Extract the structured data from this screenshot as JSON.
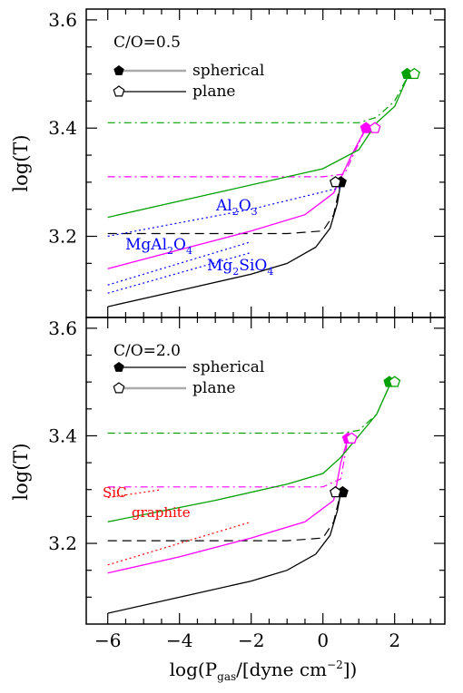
{
  "figure": {
    "xlabel": "log(P",
    "xlabel_sub": "gas",
    "xlabel_tail": "/[dyne cm",
    "xlabel_sup": "−2",
    "xlabel_end": "])",
    "x_ticks": [
      "−6",
      "−4",
      "−2",
      "0",
      "2"
    ],
    "colors": {
      "black": "#000000",
      "magenta": "#ff00ff",
      "green": "#00a000",
      "blue": "#0000ff",
      "red": "#ff0000",
      "grey": "#aaaaaa"
    }
  },
  "chart_data": [
    {
      "type": "line",
      "panel": "top",
      "ylabel": "log(T)",
      "xlim": [
        -6.6,
        3.4
      ],
      "ylim": [
        3.05,
        3.62
      ],
      "y_ticks": [
        "3.2",
        "3.4",
        "3.6"
      ],
      "annotation": "C/O=0.5",
      "legend": [
        {
          "marker": "filled-pentagon",
          "label": "spherical",
          "line": "grey-thick"
        },
        {
          "marker": "open-pentagon",
          "label": "plane",
          "line": "black-thin"
        }
      ],
      "mineral_labels": [
        {
          "text": "Al",
          "sub": "2",
          "text2": "O",
          "sub2": "3",
          "text3": ""
        },
        {
          "text": "MgAl",
          "sub": "2",
          "text2": "O",
          "sub2": "4",
          "text3": ""
        },
        {
          "text": "Mg",
          "sub": "2",
          "text2": "SiO",
          "sub2": "4",
          "text3": ""
        }
      ],
      "series": [
        {
          "color": "black",
          "style": "solid",
          "points": [
            [
              -6,
              3.07
            ],
            [
              -4,
              3.1
            ],
            [
              -2,
              3.13
            ],
            [
              -1,
              3.15
            ],
            [
              -0.2,
              3.18
            ],
            [
              0.2,
              3.215
            ],
            [
              0.4,
              3.26
            ],
            [
              0.5,
              3.3
            ]
          ]
        },
        {
          "color": "black",
          "style": "dashed",
          "points": [
            [
              -6,
              3.205
            ],
            [
              -1,
              3.205
            ],
            [
              0,
              3.21
            ],
            [
              0.3,
              3.24
            ],
            [
              0.5,
              3.3
            ]
          ]
        },
        {
          "color": "magenta",
          "style": "solid",
          "points": [
            [
              -6,
              3.14
            ],
            [
              -4,
              3.175
            ],
            [
              -2,
              3.21
            ],
            [
              -0.5,
              3.24
            ],
            [
              0.3,
              3.28
            ],
            [
              0.8,
              3.35
            ],
            [
              1.2,
              3.4
            ]
          ]
        },
        {
          "color": "magenta",
          "style": "dashdot",
          "points": [
            [
              -6,
              3.31
            ],
            [
              0,
              3.31
            ],
            [
              0.6,
              3.315
            ],
            [
              1.2,
              3.4
            ]
          ]
        },
        {
          "color": "green",
          "style": "solid",
          "points": [
            [
              -6,
              3.235
            ],
            [
              -3,
              3.28
            ],
            [
              0,
              3.325
            ],
            [
              1,
              3.36
            ],
            [
              1.5,
              3.41
            ],
            [
              2,
              3.44
            ],
            [
              2.4,
              3.5
            ]
          ]
        },
        {
          "color": "green",
          "style": "dashdot",
          "points": [
            [
              -6,
              3.41
            ],
            [
              1,
              3.41
            ],
            [
              1.5,
              3.42
            ],
            [
              2,
              3.45
            ],
            [
              2.4,
              3.5
            ]
          ]
        },
        {
          "color": "blue",
          "style": "dotted",
          "points": [
            [
              -6,
              3.2
            ],
            [
              -2,
              3.25
            ],
            [
              0.5,
              3.29
            ]
          ]
        },
        {
          "color": "blue",
          "style": "dotted",
          "points": [
            [
              -6,
              3.11
            ],
            [
              -2,
              3.19
            ]
          ]
        },
        {
          "color": "blue",
          "style": "dotted",
          "points": [
            [
              -6,
              3.095
            ],
            [
              -2,
              3.17
            ]
          ]
        }
      ],
      "markers": [
        {
          "type": "filled-pentagon",
          "color": "black",
          "point": [
            0.5,
            3.3
          ]
        },
        {
          "type": "open-pentagon",
          "color": "black",
          "point": [
            0.35,
            3.3
          ]
        },
        {
          "type": "filled-pentagon",
          "color": "magenta",
          "point": [
            1.2,
            3.4
          ]
        },
        {
          "type": "open-pentagon",
          "color": "magenta",
          "point": [
            1.45,
            3.4
          ]
        },
        {
          "type": "filled-pentagon",
          "color": "green",
          "point": [
            2.35,
            3.5
          ]
        },
        {
          "type": "open-pentagon",
          "color": "green",
          "point": [
            2.55,
            3.5
          ]
        }
      ]
    },
    {
      "type": "line",
      "panel": "bottom",
      "ylabel": "log(T)",
      "xlim": [
        -6.6,
        3.4
      ],
      "ylim": [
        3.05,
        3.62
      ],
      "y_ticks": [
        "3.2",
        "3.4",
        "3.6"
      ],
      "annotation": "C/O=2.0",
      "legend": [
        {
          "marker": "filled-pentagon",
          "label": "spherical",
          "line": "black-thin"
        },
        {
          "marker": "open-pentagon",
          "label": "plane",
          "line": "grey-thick"
        }
      ],
      "mineral_labels": [
        {
          "text": "SiC"
        },
        {
          "text": "graphite"
        }
      ],
      "series": [
        {
          "color": "black",
          "style": "solid",
          "points": [
            [
              -6,
              3.07
            ],
            [
              -4,
              3.1
            ],
            [
              -2,
              3.13
            ],
            [
              -1,
              3.15
            ],
            [
              -0.2,
              3.18
            ],
            [
              0.2,
              3.215
            ],
            [
              0.4,
              3.26
            ],
            [
              0.5,
              3.295
            ]
          ]
        },
        {
          "color": "black",
          "style": "dashed",
          "points": [
            [
              -6,
              3.205
            ],
            [
              -1,
              3.205
            ],
            [
              0,
              3.21
            ],
            [
              0.3,
              3.24
            ],
            [
              0.5,
              3.295
            ]
          ]
        },
        {
          "color": "magenta",
          "style": "solid",
          "points": [
            [
              -6,
              3.145
            ],
            [
              -4,
              3.175
            ],
            [
              -2,
              3.21
            ],
            [
              -0.5,
              3.24
            ],
            [
              0.3,
              3.28
            ],
            [
              0.5,
              3.35
            ],
            [
              0.7,
              3.395
            ]
          ]
        },
        {
          "color": "magenta",
          "style": "dashdot",
          "points": [
            [
              -6,
              3.305
            ],
            [
              0,
              3.305
            ],
            [
              0.5,
              3.32
            ],
            [
              0.7,
              3.395
            ]
          ]
        },
        {
          "color": "green",
          "style": "solid",
          "points": [
            [
              -6,
              3.24
            ],
            [
              -3,
              3.28
            ],
            [
              -1,
              3.31
            ],
            [
              0,
              3.33
            ],
            [
              0.5,
              3.36
            ],
            [
              1,
              3.4
            ],
            [
              1.5,
              3.44
            ],
            [
              1.9,
              3.5
            ]
          ]
        },
        {
          "color": "green",
          "style": "dashdot",
          "points": [
            [
              -6,
              3.405
            ],
            [
              0.5,
              3.405
            ],
            [
              1,
              3.41
            ],
            [
              1.5,
              3.44
            ],
            [
              1.9,
              3.5
            ]
          ]
        },
        {
          "color": "red",
          "style": "dotted",
          "points": [
            [
              -6,
              3.285
            ],
            [
              -4.5,
              3.3
            ]
          ]
        },
        {
          "color": "red",
          "style": "dotted",
          "points": [
            [
              -6,
              3.16
            ],
            [
              -2,
              3.24
            ]
          ]
        }
      ],
      "markers": [
        {
          "type": "filled-pentagon",
          "color": "black",
          "point": [
            0.55,
            3.295
          ]
        },
        {
          "type": "open-pentagon",
          "color": "black",
          "point": [
            0.35,
            3.295
          ]
        },
        {
          "type": "filled-pentagon",
          "color": "magenta",
          "point": [
            0.7,
            3.395
          ]
        },
        {
          "type": "open-pentagon",
          "color": "magenta",
          "point": [
            0.8,
            3.395
          ]
        },
        {
          "type": "filled-pentagon",
          "color": "green",
          "point": [
            1.85,
            3.5
          ]
        },
        {
          "type": "open-pentagon",
          "color": "green",
          "point": [
            2.0,
            3.5
          ]
        }
      ]
    }
  ]
}
